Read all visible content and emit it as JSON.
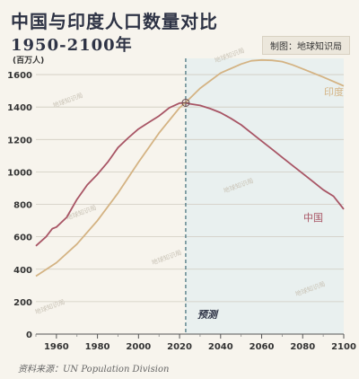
{
  "header": {
    "title": "中国与印度人口数量对比",
    "subtitle": "1950-2100年",
    "credit": "制图：地球知识局"
  },
  "footer": {
    "source": "资料来源：UN Population Division"
  },
  "annotations": {
    "forecast_label": "预测",
    "forecast_start_year": 2023
  },
  "watermark_text": "地球知识局",
  "colors": {
    "background": "#f7f4ed",
    "forecast_shade": "#e9f0ef",
    "china": "#a85565",
    "india": "#d4b383",
    "divider": "#3d6b78",
    "grid": "#d0cbc0"
  },
  "chart_data": {
    "type": "line",
    "title": "中国与印度人口数量对比",
    "subtitle": "1950-2100年",
    "ylabel": "(百万人)",
    "xlabel": "",
    "xlim": [
      1950,
      2100
    ],
    "ylim": [
      0,
      1700
    ],
    "x_ticks": [
      1960,
      1980,
      2000,
      2020,
      2040,
      2060,
      2080,
      2100
    ],
    "y_ticks": [
      0,
      200,
      400,
      600,
      800,
      1000,
      1200,
      1400,
      1600
    ],
    "grid": "horizontal",
    "series": [
      {
        "name": "中国",
        "color": "#a85565",
        "points": [
          [
            1950,
            544
          ],
          [
            1955,
            600
          ],
          [
            1958,
            650
          ],
          [
            1960,
            660
          ],
          [
            1965,
            720
          ],
          [
            1970,
            830
          ],
          [
            1975,
            920
          ],
          [
            1980,
            985
          ],
          [
            1985,
            1060
          ],
          [
            1990,
            1150
          ],
          [
            1995,
            1210
          ],
          [
            2000,
            1265
          ],
          [
            2005,
            1305
          ],
          [
            2010,
            1345
          ],
          [
            2015,
            1395
          ],
          [
            2020,
            1424
          ],
          [
            2023,
            1426
          ],
          [
            2025,
            1420
          ],
          [
            2030,
            1410
          ],
          [
            2035,
            1390
          ],
          [
            2040,
            1365
          ],
          [
            2045,
            1330
          ],
          [
            2050,
            1290
          ],
          [
            2055,
            1240
          ],
          [
            2060,
            1190
          ],
          [
            2065,
            1140
          ],
          [
            2070,
            1090
          ],
          [
            2075,
            1040
          ],
          [
            2080,
            990
          ],
          [
            2085,
            940
          ],
          [
            2090,
            890
          ],
          [
            2095,
            850
          ],
          [
            2100,
            770
          ]
        ]
      },
      {
        "name": "印度",
        "color": "#d4b383",
        "points": [
          [
            1950,
            357
          ],
          [
            1960,
            440
          ],
          [
            1970,
            555
          ],
          [
            1980,
            700
          ],
          [
            1990,
            870
          ],
          [
            2000,
            1060
          ],
          [
            2010,
            1240
          ],
          [
            2020,
            1396
          ],
          [
            2023,
            1428
          ],
          [
            2030,
            1515
          ],
          [
            2040,
            1610
          ],
          [
            2050,
            1665
          ],
          [
            2055,
            1685
          ],
          [
            2060,
            1690
          ],
          [
            2065,
            1688
          ],
          [
            2070,
            1680
          ],
          [
            2075,
            1660
          ],
          [
            2080,
            1635
          ],
          [
            2090,
            1585
          ],
          [
            2100,
            1530
          ]
        ]
      }
    ],
    "annotations": [
      {
        "text": "预测",
        "x": 2023,
        "note": "forecast region begins"
      }
    ]
  }
}
